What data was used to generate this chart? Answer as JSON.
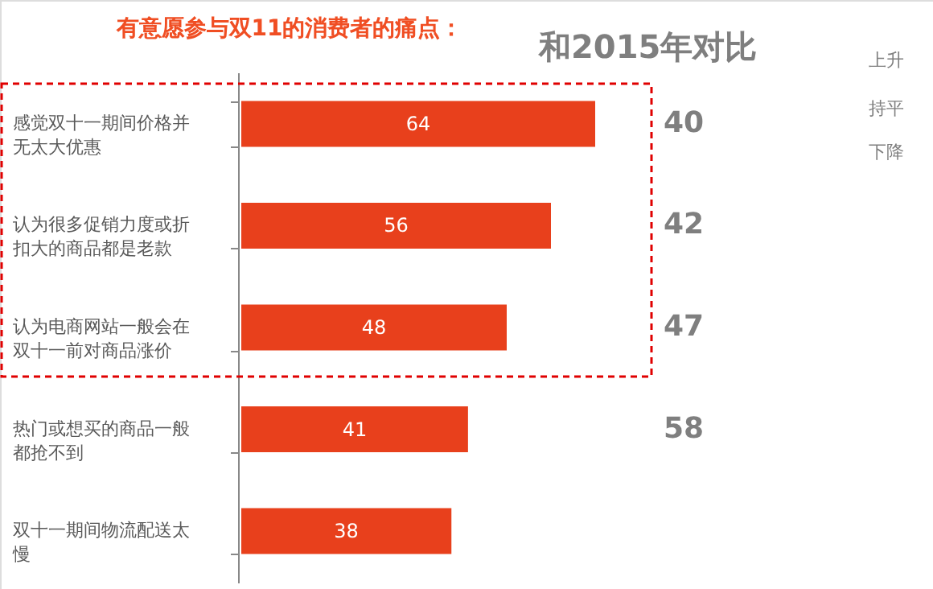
{
  "chart_data": {
    "type": "bar",
    "orientation": "horizontal",
    "title": "有意愿参与双11的消费者的痛点：",
    "categories": [
      "感觉双十一期间价格并无太大优惠",
      "认为很多促销力度或折扣大的商品都是老款",
      "认为电商网站一般会在双十一前对商品涨价",
      "热门或想买的商品一般都抢不到",
      "双十一期间物流配送太慢"
    ],
    "values": [
      64,
      56,
      48,
      41,
      38
    ],
    "color": "#e8401c",
    "data_labels": true,
    "annotations": [
      "和2015年对比",
      "上升",
      "持平",
      "下降",
      "40",
      "42",
      "47",
      "58"
    ]
  }
}
